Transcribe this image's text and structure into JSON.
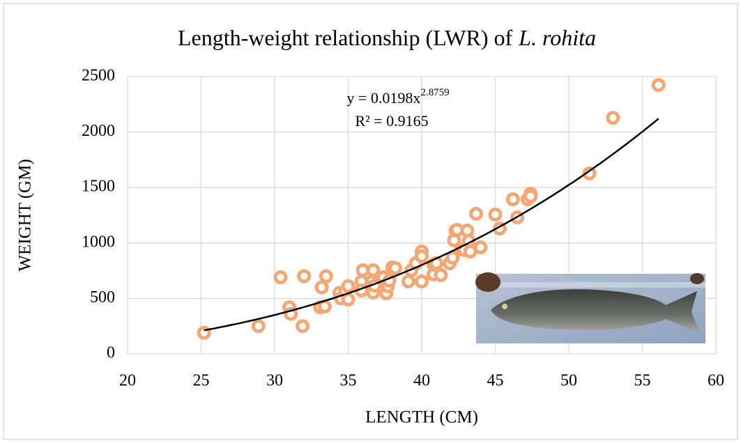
{
  "chart_data": {
    "type": "scatter",
    "title": [
      "Length-weight relationship (LWR) of",
      "L. rohita"
    ],
    "xlabel": "LENGTH (CM)",
    "ylabel": "WEIGHT (GM)",
    "xlim": [
      20,
      60
    ],
    "xticks": [
      20,
      25,
      30,
      35,
      40,
      45,
      50,
      55,
      60
    ],
    "ylim": [
      0,
      2500
    ],
    "yticks": [
      0,
      500,
      1000,
      1500,
      2000,
      2500
    ],
    "grid": true,
    "series": [
      {
        "color": "#f4a772",
        "x": [
          25.2,
          28.9,
          30.4,
          31,
          31.1,
          32,
          31.9,
          33.2,
          33.5,
          33.1,
          33.4,
          34.4,
          34.5,
          34.8,
          35,
          35,
          35.9,
          35.9,
          36,
          36.7,
          36.6,
          36.6,
          36.7,
          36.8,
          37.4,
          37.6,
          37.7,
          37.8,
          38,
          38.2,
          39.1,
          39.3,
          39.6,
          40,
          40,
          40,
          40.8,
          40.8,
          41,
          41.3,
          41.9,
          42.1,
          42.2,
          42.3,
          42.4,
          42.7,
          42.9,
          43.1,
          43.2,
          43.3,
          43.7,
          44,
          45,
          45.3,
          46.2,
          46.5,
          47.2,
          47.4,
          47.4,
          51.4,
          53,
          56.1
        ],
        "values": [
          190,
          250,
          690,
          420,
          360,
          700,
          250,
          600,
          700,
          420,
          427,
          550,
          500,
          565,
          610,
          490,
          653,
          572,
          754,
          754,
          650,
          600,
          553,
          615,
          690,
          546,
          610,
          660,
          779,
          773,
          653,
          754,
          817,
          653,
          923,
          880,
          716,
          804,
          817,
          710,
          817,
          867,
          1024,
          1112,
          1118,
          942,
          936,
          1112,
          1018,
          923,
          1263,
          961,
          1256,
          1130,
          1394,
          1231,
          1394,
          1444,
          1420,
          1627,
          2129,
          2425
        ]
      }
    ],
    "trendline": {
      "type": "power",
      "color": "#000000",
      "equation": {
        "text": "y = 0.0198x",
        "exponent": "2.8759"
      },
      "r_squared_label": "R² = 0.9165"
    }
  }
}
